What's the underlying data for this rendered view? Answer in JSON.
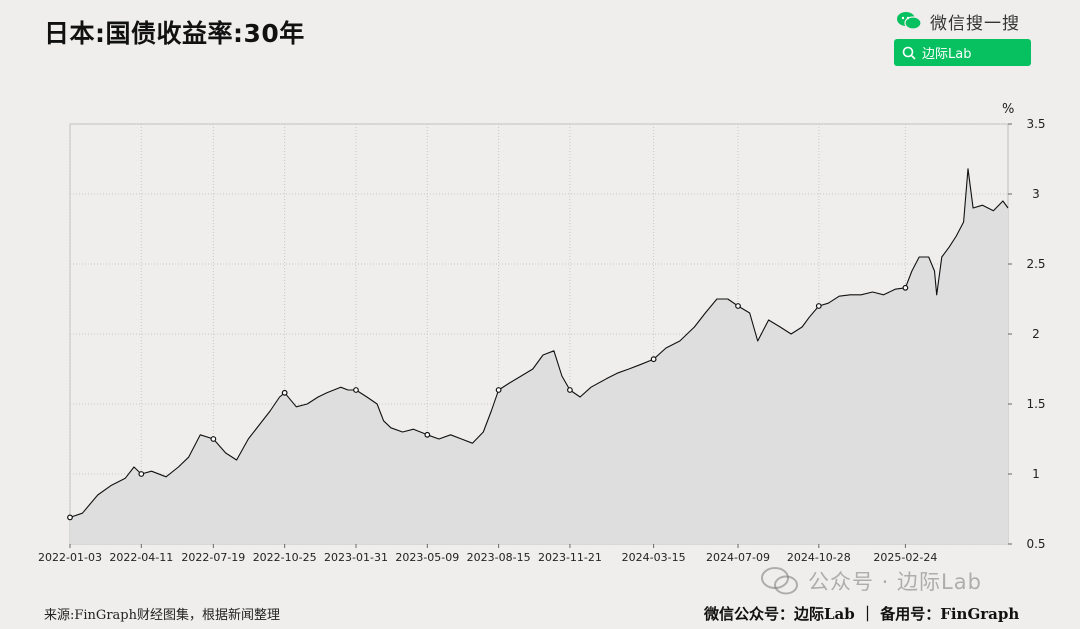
{
  "title": "日本:国债收益率:30年",
  "brand": {
    "wechat_search_text": "微信搜一搜",
    "search_button_label": "边际Lab",
    "green": "#07c160"
  },
  "watermark_text": "公众号 · 边际Lab",
  "footer": {
    "source": "来源:FinGraph财经图集，根据新闻整理",
    "credit": "微信公众号：边际Lab ｜ 备用号：FinGraph"
  },
  "chart_data": {
    "type": "line",
    "title": "日本:国债收益率:30年",
    "ylabel": "%",
    "ylim": [
      0.5,
      3.5
    ],
    "yticks": [
      0.5,
      1,
      1.5,
      2,
      2.5,
      3,
      3.5
    ],
    "ytick_labels": [
      "0.5",
      "1",
      "1.5",
      "2",
      "2.5",
      "3",
      "3.5"
    ],
    "xlim": [
      "2022-01-03",
      "2025-07-15"
    ],
    "xticks": [
      "2022-01-03",
      "2022-04-11",
      "2022-07-19",
      "2022-10-25",
      "2023-01-31",
      "2023-05-09",
      "2023-08-15",
      "2023-11-21",
      "2024-03-15",
      "2024-07-09",
      "2024-10-28",
      "2025-02-24"
    ],
    "grid": true,
    "fill": true,
    "line_color": "#111111",
    "fill_color": "#dedede",
    "series": [
      {
        "x": [
          "2022-01-03",
          "2022-01-20",
          "2022-02-10",
          "2022-03-01",
          "2022-03-20",
          "2022-04-01",
          "2022-04-11",
          "2022-04-25",
          "2022-05-15",
          "2022-06-01",
          "2022-06-15",
          "2022-07-01",
          "2022-07-19",
          "2022-08-05",
          "2022-08-20",
          "2022-09-05",
          "2022-09-20",
          "2022-10-05",
          "2022-10-18",
          "2022-10-25",
          "2022-11-10",
          "2022-11-25",
          "2022-12-10",
          "2022-12-22",
          "2023-01-10",
          "2023-01-20",
          "2023-01-31",
          "2023-02-15",
          "2023-03-01",
          "2023-03-10",
          "2023-03-20",
          "2023-04-05",
          "2023-04-20",
          "2023-05-09",
          "2023-05-25",
          "2023-06-10",
          "2023-06-25",
          "2023-07-10",
          "2023-07-25",
          "2023-08-05",
          "2023-08-15",
          "2023-08-30",
          "2023-09-15",
          "2023-10-01",
          "2023-10-15",
          "2023-10-30",
          "2023-11-10",
          "2023-11-21",
          "2023-12-05",
          "2023-12-20",
          "2024-01-10",
          "2024-01-25",
          "2024-02-10",
          "2024-02-25",
          "2024-03-15",
          "2024-04-01",
          "2024-04-20",
          "2024-05-10",
          "2024-05-25",
          "2024-06-10",
          "2024-06-25",
          "2024-07-09",
          "2024-07-25",
          "2024-08-05",
          "2024-08-20",
          "2024-09-05",
          "2024-09-20",
          "2024-10-05",
          "2024-10-15",
          "2024-10-28",
          "2024-11-10",
          "2024-11-25",
          "2024-12-10",
          "2024-12-25",
          "2025-01-10",
          "2025-01-25",
          "2025-02-10",
          "2025-02-24",
          "2025-03-05",
          "2025-03-15",
          "2025-03-28",
          "2025-04-05",
          "2025-04-08",
          "2025-04-15",
          "2025-04-25",
          "2025-05-05",
          "2025-05-15",
          "2025-05-21",
          "2025-05-28",
          "2025-06-10",
          "2025-06-25",
          "2025-07-08",
          "2025-07-15"
        ],
        "y": [
          0.69,
          0.72,
          0.85,
          0.92,
          0.97,
          1.05,
          1.0,
          1.02,
          0.98,
          1.05,
          1.12,
          1.28,
          1.25,
          1.15,
          1.1,
          1.25,
          1.35,
          1.45,
          1.55,
          1.58,
          1.48,
          1.5,
          1.55,
          1.58,
          1.62,
          1.6,
          1.6,
          1.55,
          1.5,
          1.38,
          1.33,
          1.3,
          1.32,
          1.28,
          1.25,
          1.28,
          1.25,
          1.22,
          1.3,
          1.45,
          1.6,
          1.65,
          1.7,
          1.75,
          1.85,
          1.88,
          1.7,
          1.6,
          1.55,
          1.62,
          1.68,
          1.72,
          1.75,
          1.78,
          1.82,
          1.9,
          1.95,
          2.05,
          2.15,
          2.25,
          2.25,
          2.2,
          2.15,
          1.95,
          2.1,
          2.05,
          2.0,
          2.05,
          2.12,
          2.2,
          2.22,
          2.27,
          2.28,
          2.28,
          2.3,
          2.28,
          2.32,
          2.33,
          2.45,
          2.55,
          2.55,
          2.45,
          2.28,
          2.55,
          2.62,
          2.7,
          2.8,
          3.18,
          2.9,
          2.92,
          2.88,
          2.95,
          2.9
        ]
      }
    ],
    "markers": [
      {
        "x": "2022-01-03",
        "y": 0.69
      },
      {
        "x": "2022-04-11",
        "y": 1.0
      },
      {
        "x": "2022-07-19",
        "y": 1.25
      },
      {
        "x": "2022-10-25",
        "y": 1.58
      },
      {
        "x": "2023-01-31",
        "y": 1.6
      },
      {
        "x": "2023-05-09",
        "y": 1.28
      },
      {
        "x": "2023-08-15",
        "y": 1.6
      },
      {
        "x": "2023-11-21",
        "y": 1.6
      },
      {
        "x": "2024-03-15",
        "y": 1.82
      },
      {
        "x": "2024-07-09",
        "y": 2.2
      },
      {
        "x": "2024-10-28",
        "y": 2.2
      },
      {
        "x": "2025-02-24",
        "y": 2.33
      }
    ]
  }
}
